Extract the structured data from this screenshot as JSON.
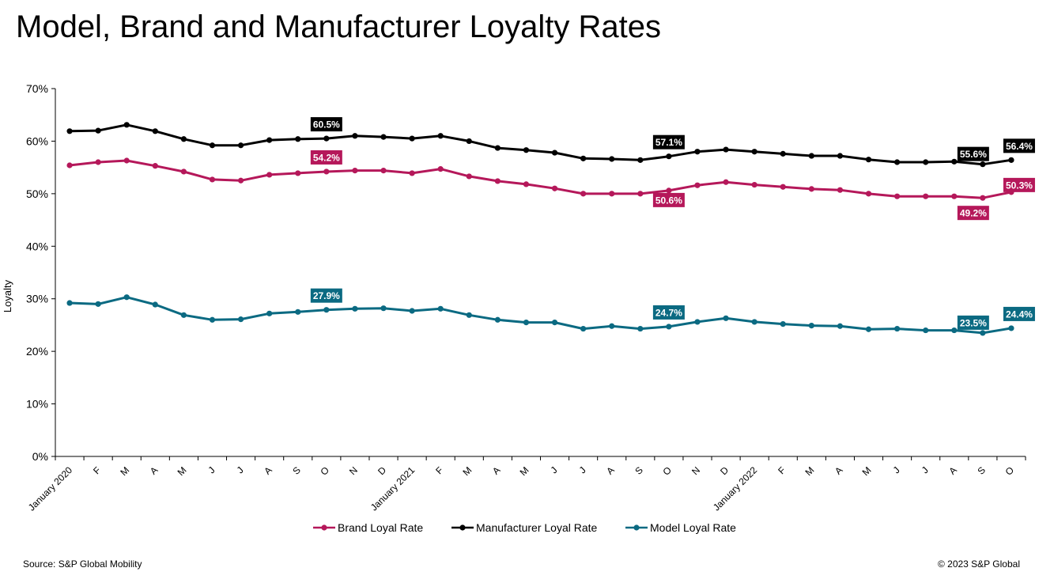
{
  "title": "Model, Brand and Manufacturer Loyalty Rates",
  "source": "Source: S&P Global Mobility",
  "copyright": "© 2023 S&P Global",
  "chart_data": {
    "type": "line",
    "title": "Model, Brand and Manufacturer Loyalty Rates",
    "xlabel": "",
    "ylabel": "Loyalty",
    "ylim": [
      0,
      70
    ],
    "yticks": [
      "0%",
      "10%",
      "20%",
      "30%",
      "40%",
      "50%",
      "60%",
      "70%"
    ],
    "grid": false,
    "legend_position": "bottom",
    "categories": [
      "January 2020",
      "F",
      "M",
      "A",
      "M",
      "J",
      "J",
      "A",
      "S",
      "O",
      "N",
      "D",
      "January 2021",
      "F",
      "M",
      "A",
      "M",
      "J",
      "J",
      "A",
      "S",
      "O",
      "N",
      "D",
      "January 2022",
      "F",
      "M",
      "A",
      "M",
      "J",
      "J",
      "A",
      "S",
      "O"
    ],
    "series": [
      {
        "name": "Brand Loyal Rate",
        "color": "#b5185a",
        "values": [
          55.4,
          56.0,
          56.3,
          55.3,
          54.2,
          52.7,
          52.5,
          53.6,
          53.9,
          54.2,
          54.4,
          54.4,
          53.9,
          54.7,
          53.3,
          52.4,
          51.8,
          51.0,
          50.0,
          50.0,
          50.0,
          50.6,
          51.6,
          52.2,
          51.7,
          51.3,
          50.9,
          50.7,
          50.0,
          49.5,
          49.5,
          49.5,
          49.2,
          50.3
        ],
        "labels": [
          {
            "index": 9,
            "text": "54.2%"
          },
          {
            "index": 21,
            "text": "50.6%"
          },
          {
            "index": 32,
            "text": "49.2%"
          },
          {
            "index": 33,
            "text": "50.3%"
          }
        ]
      },
      {
        "name": "Manufacturer Loyal Rate",
        "color": "#000000",
        "values": [
          61.9,
          62.0,
          63.1,
          61.9,
          60.4,
          59.2,
          59.2,
          60.2,
          60.4,
          60.5,
          61.0,
          60.8,
          60.5,
          61.0,
          60.0,
          58.7,
          58.3,
          57.8,
          56.7,
          56.6,
          56.4,
          57.1,
          58.0,
          58.4,
          58.0,
          57.6,
          57.2,
          57.2,
          56.5,
          56.0,
          56.0,
          56.1,
          55.6,
          56.4
        ],
        "labels": [
          {
            "index": 9,
            "text": "60.5%"
          },
          {
            "index": 21,
            "text": "57.1%"
          },
          {
            "index": 32,
            "text": "55.6%"
          },
          {
            "index": 33,
            "text": "56.4%"
          }
        ]
      },
      {
        "name": "Model Loyal Rate",
        "color": "#0b6a82",
        "values": [
          29.2,
          29.0,
          30.3,
          28.9,
          26.9,
          26.0,
          26.1,
          27.2,
          27.5,
          27.9,
          28.1,
          28.2,
          27.7,
          28.1,
          26.9,
          26.0,
          25.5,
          25.5,
          24.3,
          24.8,
          24.3,
          24.7,
          25.6,
          26.3,
          25.6,
          25.2,
          24.9,
          24.8,
          24.2,
          24.3,
          24.0,
          24.0,
          23.5,
          24.4
        ],
        "labels": [
          {
            "index": 9,
            "text": "27.9%"
          },
          {
            "index": 21,
            "text": "24.7%"
          },
          {
            "index": 32,
            "text": "23.5%"
          },
          {
            "index": 33,
            "text": "24.4%"
          }
        ]
      }
    ]
  }
}
